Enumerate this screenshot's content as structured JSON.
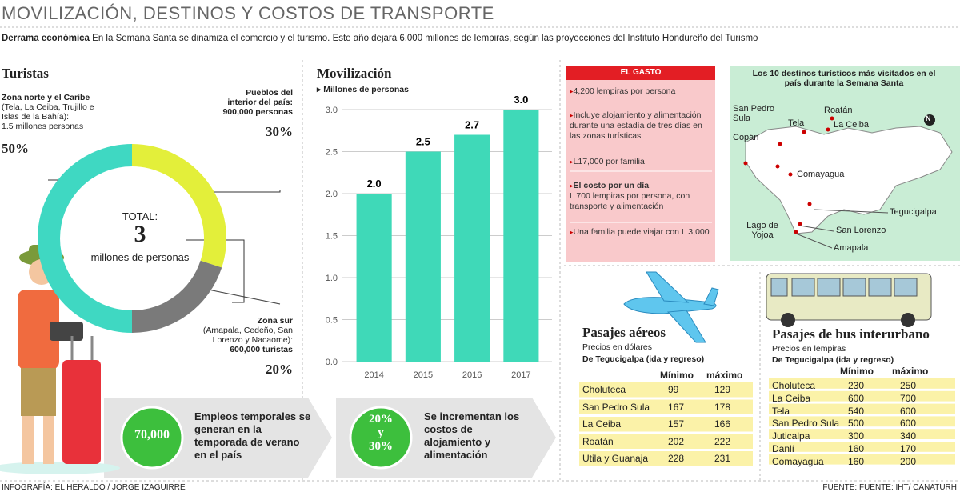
{
  "header": {
    "title": "MOVILIZACIÓN, DESTINOS Y COSTOS DE TRANSPORTE",
    "lead_label": "Derrama económica",
    "lead_text": "En la Semana Santa se dinamiza el comercio y el turismo. Este año dejará 6,000 millones de lempiras, según las proyecciones del Instituto Hondureño del Turismo"
  },
  "chart_data": [
    {
      "type": "donut",
      "title": "Turistas",
      "total_label": "TOTAL:",
      "total": 3,
      "total_unit": "millones de personas",
      "categories": [
        "Zona norte y el Caribe",
        "Pueblos del interior del país:",
        "Zona sur"
      ],
      "details": [
        "(Tela, La Ceiba, Trujillo e Islas de la Bahía):",
        "900,000 personas",
        "(Amapala, Cedeño, San Lorenzo y Nacaome):"
      ],
      "amounts": [
        "1.5 millones personas",
        "",
        "600,000 turistas"
      ],
      "values": [
        50,
        30,
        20
      ],
      "value_labels": [
        "50%",
        "30%",
        "20%"
      ],
      "colors": [
        "#3fd8c2",
        "#e3ef3a",
        "#7a7a7a"
      ]
    },
    {
      "type": "bar",
      "title": "Movilización",
      "subtitle": "Millones de personas",
      "categories": [
        "2014",
        "2015",
        "2016",
        "2017"
      ],
      "values": [
        2.0,
        2.5,
        2.7,
        3.0
      ],
      "value_labels": [
        "2.0",
        "2.5",
        "2.7",
        "3.0"
      ],
      "color": "#3fd9b8",
      "ylim": [
        0,
        3.1
      ],
      "yticks": [
        {
          "value": 0,
          "label": "0.0"
        },
        {
          "value": 0.5,
          "label": "0.5"
        },
        {
          "value": 1,
          "label": "1.0"
        },
        {
          "value": 1.5,
          "label": "1.5"
        },
        {
          "value": 2,
          "label": "2.0"
        },
        {
          "value": 2.5,
          "label": "2.5"
        },
        {
          "value": 3,
          "label": "3.0"
        }
      ],
      "grid": true
    }
  ],
  "gasto": {
    "title": "EL GASTO",
    "items": [
      "4,200 lempiras por persona",
      "Incluye alojamiento y alimentación durante una estadía de tres días en las zonas turísticas",
      "L17,000 por familia"
    ],
    "cost_heading": "El costo por un día",
    "cost_text": "L 700 lempiras por persona, con transporte y alimentación",
    "family_text": "Una familia puede viajar con L 3,000"
  },
  "map": {
    "title": "Los 10 destinos turísticos más visitados en el país durante la Semana Santa",
    "compass": "N",
    "places": [
      "San Pedro Sula",
      "Roatán",
      "Tela",
      "La Ceiba",
      "Copán",
      "Comayagua",
      "Tegucigalpa",
      "Lago de Yojoa",
      "San Lorenzo",
      "Amapala"
    ]
  },
  "air": {
    "title": "Pasajes aéreos",
    "subtitle": "Precios en dólares",
    "route": "De Tegucigalpa",
    "trip": "(ida y regreso)",
    "columns": [
      "Mínimo",
      "máximo"
    ],
    "rows": [
      [
        "Choluteca",
        "99",
        "129"
      ],
      [
        "San Pedro Sula",
        "167",
        "178"
      ],
      [
        "La Ceiba",
        "157",
        "166"
      ],
      [
        "Roatán",
        "202",
        "222"
      ],
      [
        "Utila y Guanaja",
        "228",
        "231"
      ]
    ]
  },
  "bus": {
    "title": "Pasajes de bus interurbano",
    "subtitle": "Precios en lempiras",
    "route": "De Tegucigalpa",
    "trip": "(ida y regreso)",
    "columns": [
      "Mínimo",
      "máximo"
    ],
    "rows": [
      [
        "Choluteca",
        "230",
        "250"
      ],
      [
        "La Ceiba",
        "600",
        "700"
      ],
      [
        "Tela",
        "540",
        "600"
      ],
      [
        "San Pedro Sula",
        "500",
        "600"
      ],
      [
        "Juticalpa",
        "300",
        "340"
      ],
      [
        "Danlí",
        "160",
        "170"
      ],
      [
        "Comayagua",
        "160",
        "200"
      ]
    ]
  },
  "callouts": [
    {
      "figure": [
        "70,000"
      ],
      "text": "Empleos temporales se generan en la temporada de verano en el país"
    },
    {
      "figure": [
        "20%",
        "y",
        "30%"
      ],
      "text": "Se incrementan los costos de alojamiento y alimentación"
    }
  ],
  "footer": {
    "credit": "INFOGRAFÍA: EL HERALDO / JORGE IZAGUIRRE",
    "source": "FUENTE: FUENTE: IHT/ CANATURH"
  }
}
